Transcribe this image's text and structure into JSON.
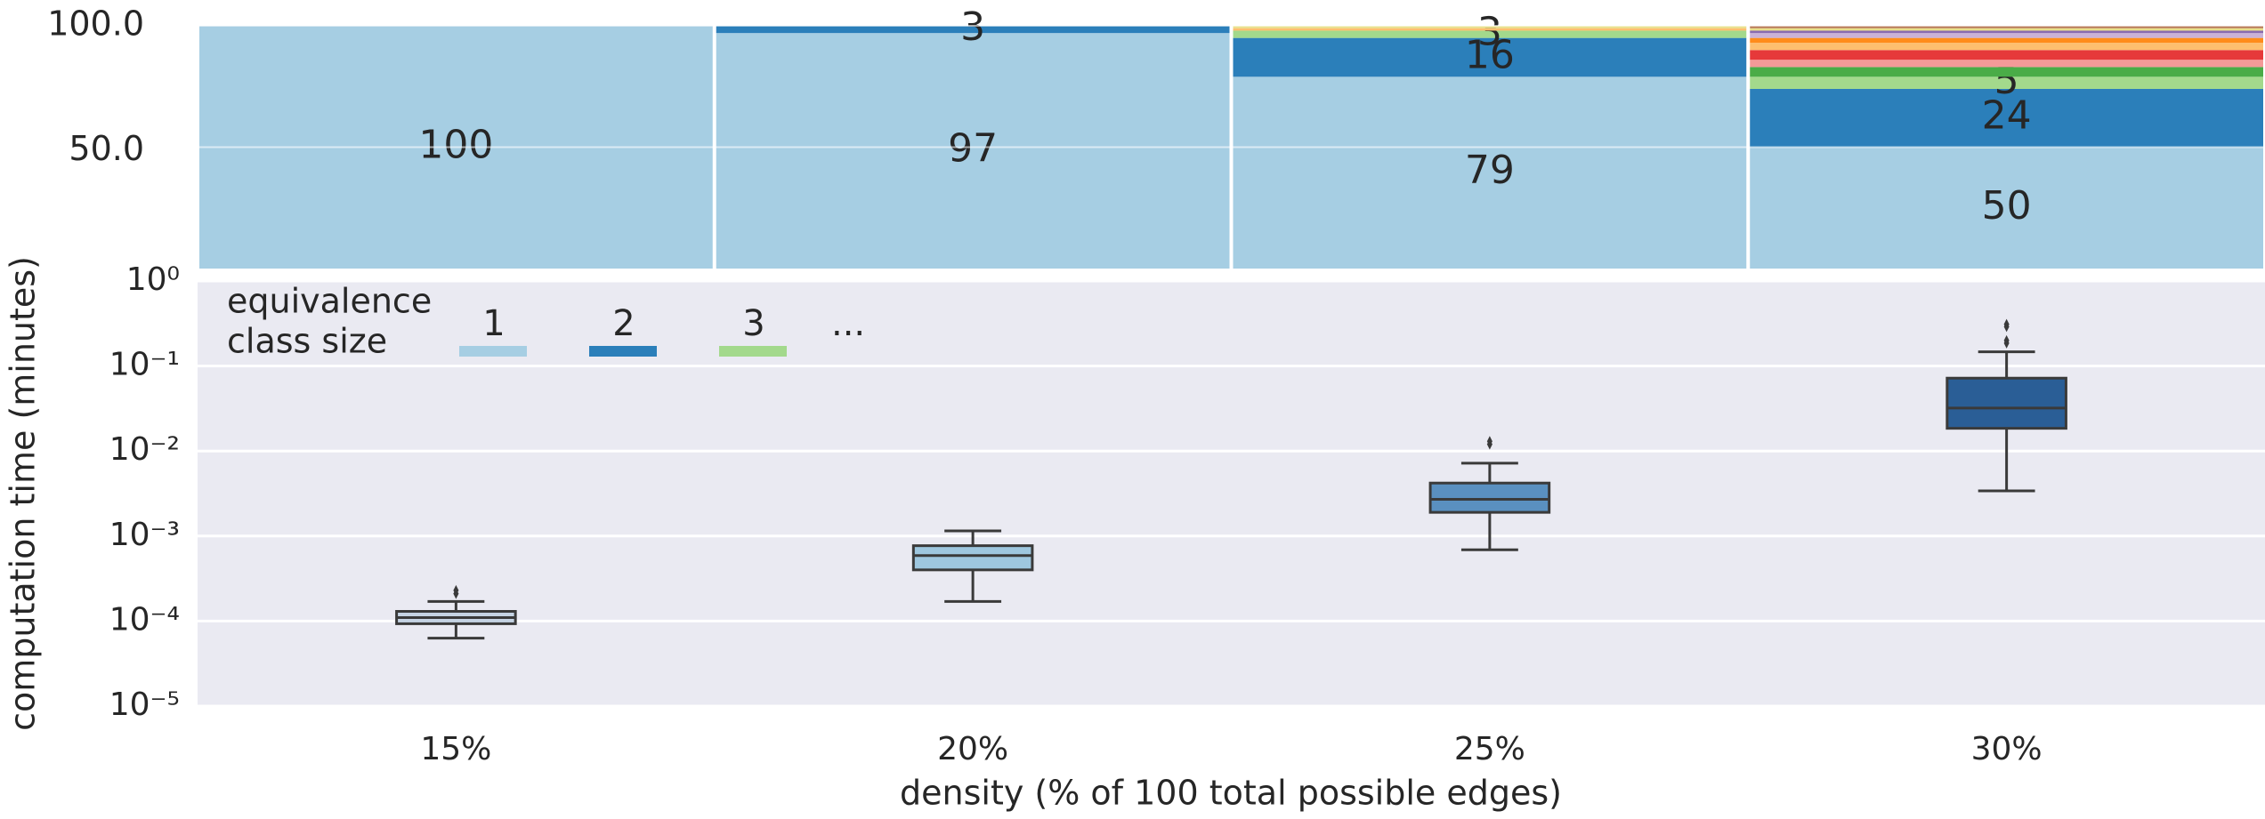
{
  "chart_data": [
    {
      "type": "stacked_bar",
      "ylim": [
        0,
        100
      ],
      "yticks": [
        {
          "value": 50,
          "label": "50.0"
        },
        {
          "value": 100,
          "label": "100.0"
        }
      ],
      "grid": true,
      "legend_title": [
        "equivalence",
        "class size"
      ],
      "legend_more": "...",
      "series": [
        {
          "name": "1",
          "color": "#a6cee3",
          "labeled": true,
          "values": [
            100,
            97,
            79,
            50
          ]
        },
        {
          "name": "2",
          "color": "#2b7fba",
          "labeled": true,
          "values": [
            0,
            3,
            16,
            24
          ]
        },
        {
          "name": "3",
          "color": "#a3d98c",
          "labeled": true,
          "values": [
            0,
            0,
            3,
            5
          ]
        },
        {
          "color": "#4aac47",
          "values": [
            0,
            0,
            0,
            4
          ]
        },
        {
          "color": "#f49a98",
          "values": [
            0,
            0,
            0,
            3
          ]
        },
        {
          "color": "#e6393a",
          "values": [
            0,
            0,
            0,
            4
          ]
        },
        {
          "color": "#fdbf6f",
          "values": [
            0,
            0,
            1,
            3
          ]
        },
        {
          "color": "#ff8c1a",
          "values": [
            0,
            0,
            0,
            2
          ]
        },
        {
          "color": "#cab2d6",
          "values": [
            0,
            0,
            0,
            2
          ]
        },
        {
          "color": "#8a6bb0",
          "values": [
            0,
            0,
            0,
            1
          ]
        },
        {
          "color": "#e8e08a",
          "values": [
            0,
            0,
            1,
            1
          ]
        },
        {
          "color": "#b97a57",
          "values": [
            0,
            0,
            0,
            1
          ]
        }
      ]
    },
    {
      "type": "box",
      "ylabel": "computation time (minutes)",
      "xlabel": "density (% of 100 total possible edges)",
      "categories": [
        "15%",
        "20%",
        "25%",
        "30%"
      ],
      "log_y": true,
      "ylim": [
        1e-05,
        1
      ],
      "yticks": [
        {
          "value": 1,
          "label": "10⁰"
        },
        {
          "value": 0.1,
          "label": "10⁻¹"
        },
        {
          "value": 0.01,
          "label": "10⁻²"
        },
        {
          "value": 0.001,
          "label": "10⁻³"
        },
        {
          "value": 0.0001,
          "label": "10⁻⁴"
        },
        {
          "value": 1e-05,
          "label": "10⁻⁵"
        }
      ],
      "grid": true,
      "boxes": [
        {
          "color": "#c5d3e3",
          "whislo": 6.3e-05,
          "q1": 9.3e-05,
          "med": 0.00011,
          "q3": 0.00013,
          "whishi": 0.00017,
          "fliers": [
            0.00021,
            0.00023
          ]
        },
        {
          "color": "#9ec7df",
          "whislo": 0.00017,
          "q1": 0.0004,
          "med": 0.00059,
          "q3": 0.00077,
          "whishi": 0.00115,
          "fliers": []
        },
        {
          "color": "#5a90c0",
          "whislo": 0.00069,
          "q1": 0.0019,
          "med": 0.0027,
          "q3": 0.0042,
          "whishi": 0.0072,
          "fliers": [
            0.012,
            0.013
          ]
        },
        {
          "color": "#2a5e96",
          "whislo": 0.0034,
          "q1": 0.0185,
          "med": 0.032,
          "q3": 0.072,
          "whishi": 0.147,
          "fliers": [
            0.186,
            0.2,
            0.29,
            0.31
          ]
        }
      ]
    }
  ]
}
